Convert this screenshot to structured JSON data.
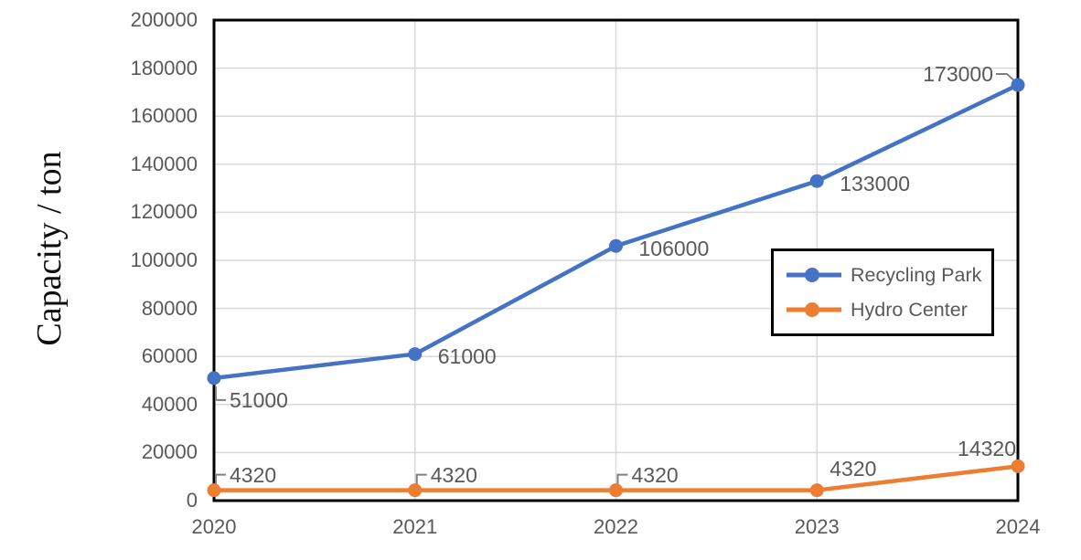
{
  "chart_data": {
    "type": "line",
    "title": "",
    "xlabel": "",
    "ylabel": "Capacity / ton",
    "categories": [
      "2020",
      "2021",
      "2022",
      "2023",
      "2024"
    ],
    "ylim": [
      0,
      200000
    ],
    "ytick_step": 20000,
    "ytick_labels": [
      "0",
      "20000",
      "40000",
      "60000",
      "80000",
      "100000",
      "120000",
      "140000",
      "160000",
      "180000",
      "200000"
    ],
    "grid": true,
    "legend_position": "inside-right",
    "marker": "circle",
    "series": [
      {
        "name": "Recycling Park",
        "color": "#4472C4",
        "values": [
          51000,
          61000,
          106000,
          133000,
          173000
        ],
        "labels": [
          "51000",
          "61000",
          "106000",
          "133000",
          "173000"
        ],
        "label_placements": [
          "below-right-leader",
          "right",
          "right",
          "right",
          "left-leader"
        ]
      },
      {
        "name": "Hydro Center",
        "color": "#ED7D31",
        "values": [
          4320,
          4320,
          4320,
          4320,
          14320
        ],
        "labels": [
          "4320",
          "4320",
          "4320",
          "4320",
          "14320"
        ],
        "label_placements": [
          "above-right-leader",
          "above-right-leader",
          "above-right-leader",
          "above-right",
          "above-left"
        ]
      }
    ]
  },
  "colors": {
    "axis_text": "#595959",
    "data_label_text": "#595959",
    "gridline": "#D9D9D9",
    "axis_line": "#000000",
    "leader_line": "#7F7F7F",
    "legend_border": "#000000",
    "background": "#FFFFFF"
  }
}
